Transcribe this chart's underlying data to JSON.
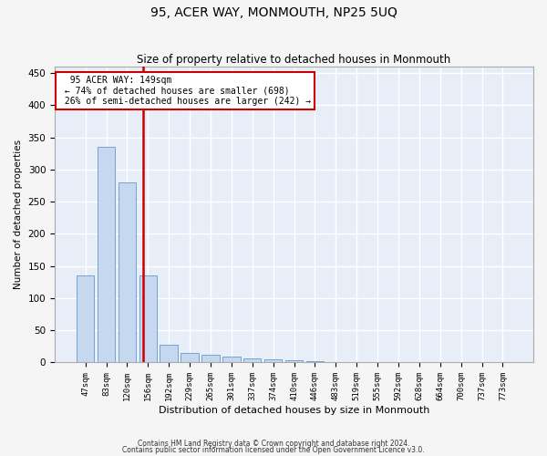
{
  "title": "95, ACER WAY, MONMOUTH, NP25 5UQ",
  "subtitle": "Size of property relative to detached houses in Monmouth",
  "xlabel": "Distribution of detached houses by size in Monmouth",
  "ylabel": "Number of detached properties",
  "bar_labels": [
    "47sqm",
    "83sqm",
    "120sqm",
    "156sqm",
    "192sqm",
    "229sqm",
    "265sqm",
    "301sqm",
    "337sqm",
    "374sqm",
    "410sqm",
    "446sqm",
    "483sqm",
    "519sqm",
    "555sqm",
    "592sqm",
    "628sqm",
    "664sqm",
    "700sqm",
    "737sqm",
    "773sqm"
  ],
  "bar_values": [
    135,
    335,
    280,
    135,
    27,
    15,
    12,
    9,
    6,
    5,
    3,
    2,
    1,
    1,
    1,
    0.5,
    0.5,
    0.5,
    0.5,
    0.5,
    0.5
  ],
  "bar_color": "#c5d8f0",
  "bar_edge_color": "#6699cc",
  "vline_x": 2.78,
  "vline_color": "#cc0000",
  "annotation_text": "  95 ACER WAY: 149sqm  \n ← 74% of detached houses are smaller (698)\n 26% of semi-detached houses are larger (242) →",
  "annotation_box_color": "#ffffff",
  "annotation_box_edge_color": "#cc0000",
  "bg_color": "#e8eef8",
  "grid_color": "#ffffff",
  "ylim": [
    0,
    460
  ],
  "yticks": [
    0,
    50,
    100,
    150,
    200,
    250,
    300,
    350,
    400,
    450
  ],
  "footnote1": "Contains HM Land Registry data © Crown copyright and database right 2024.",
  "footnote2": "Contains public sector information licensed under the Open Government Licence v3.0."
}
